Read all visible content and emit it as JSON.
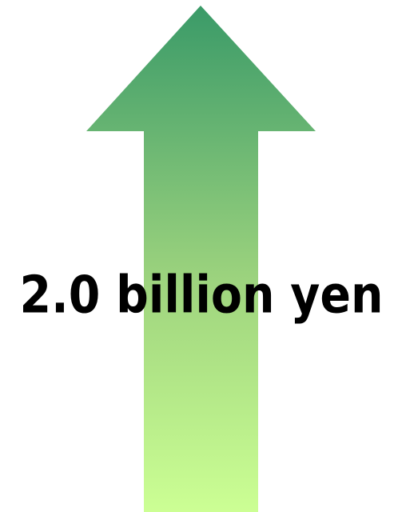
{
  "label": "2.0 billion yen"
}
